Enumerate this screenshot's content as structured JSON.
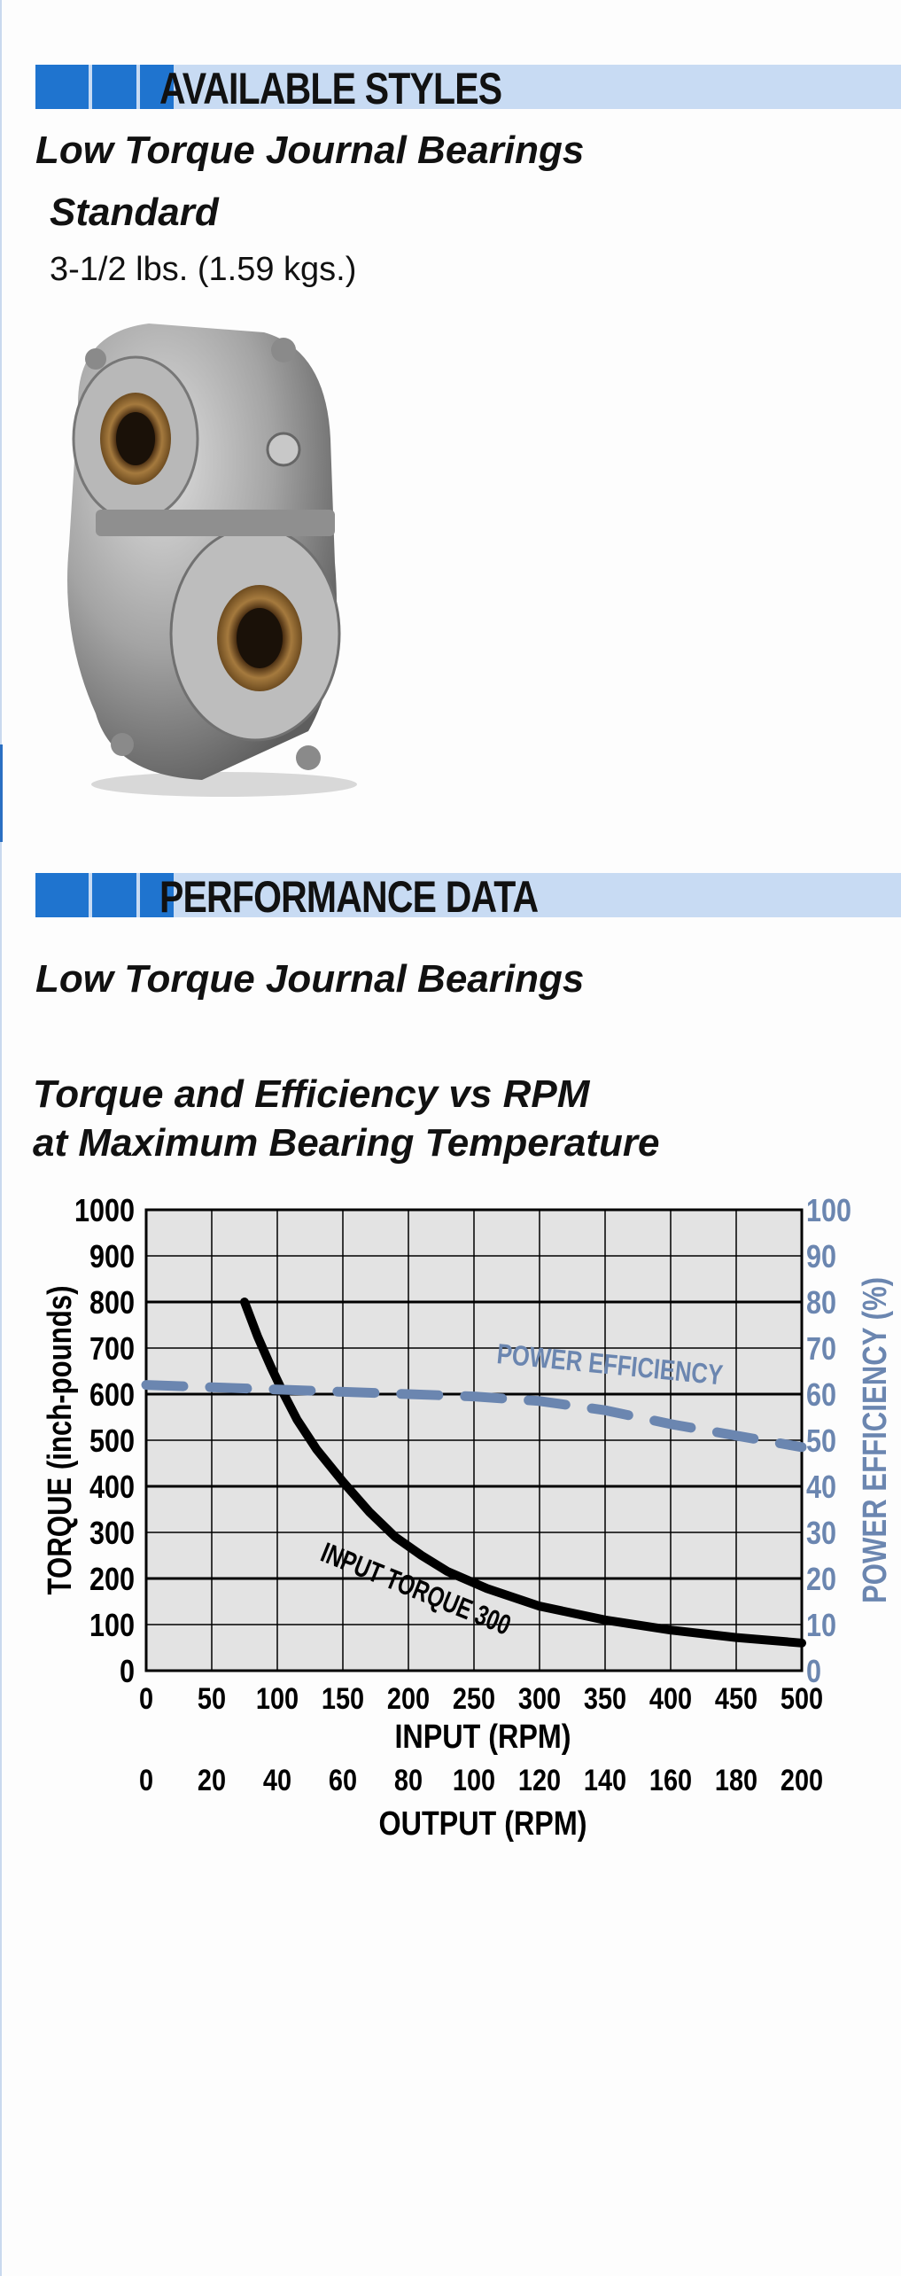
{
  "sections": {
    "styles": {
      "title": "AVAILABLE STYLES",
      "subtitle": "Low Torque Journal Bearings",
      "style_name": "Standard",
      "weight": "3-1/2 lbs.  (1.59 kgs.)"
    },
    "performance": {
      "title": "PERFORMANCE DATA",
      "subtitle": "Low Torque Journal Bearings",
      "chart_title_line1": "Torque and Efficiency vs RPM",
      "chart_title_line2": "at Maximum Bearing Temperature"
    }
  },
  "product_image": {
    "icon": "gear-reducer-photo"
  },
  "colors": {
    "section_bar_light": "#c8dbf3",
    "section_bar_dark": "#1f74cf",
    "chart_background": "#e3e3e3",
    "torque_line": "#000000",
    "efficiency_line": "#6b86b0"
  },
  "chart_data": {
    "type": "line",
    "ylabel_left": "TORQUE (inch-pounds)",
    "ylabel_right": "POWER EFFICIENCY (%)",
    "xlabel_input": "INPUT (RPM)",
    "xlabel_output": "OUTPUT (RPM)",
    "input_ticks": [
      "0",
      "50",
      "100",
      "150",
      "200",
      "250",
      "300",
      "350",
      "400",
      "450",
      "500"
    ],
    "output_ticks": [
      "0",
      "20",
      "40",
      "60",
      "80",
      "100",
      "120",
      "140",
      "160",
      "180",
      "200"
    ],
    "left_ticks": [
      "0",
      "100",
      "200",
      "300",
      "400",
      "500",
      "600",
      "700",
      "800",
      "900",
      "1000"
    ],
    "right_ticks": [
      "0",
      "10",
      "20",
      "30",
      "40",
      "50",
      "60",
      "70",
      "80",
      "90",
      "100"
    ],
    "xlim": [
      0,
      500
    ],
    "ylim_left": [
      0,
      1000
    ],
    "ylim_right": [
      0,
      100
    ],
    "grid": true,
    "series": [
      {
        "name": "INPUT TORQUE 300",
        "axis": "left",
        "style": "solid",
        "x": [
          75,
          85,
          95,
          105,
          115,
          130,
          150,
          170,
          190,
          210,
          230,
          260,
          300,
          350,
          400,
          450,
          500
        ],
        "y": [
          800,
          725,
          660,
          600,
          545,
          480,
          410,
          345,
          290,
          250,
          215,
          178,
          140,
          110,
          88,
          72,
          60
        ]
      },
      {
        "name": "POWER EFFICIENCY",
        "axis": "right",
        "style": "dashed",
        "x": [
          0,
          50,
          100,
          150,
          200,
          250,
          300,
          350,
          400,
          450,
          500
        ],
        "y": [
          62,
          61.5,
          61,
          60.5,
          60,
          59.5,
          58.5,
          56.5,
          53.5,
          51,
          48.5
        ]
      }
    ]
  }
}
